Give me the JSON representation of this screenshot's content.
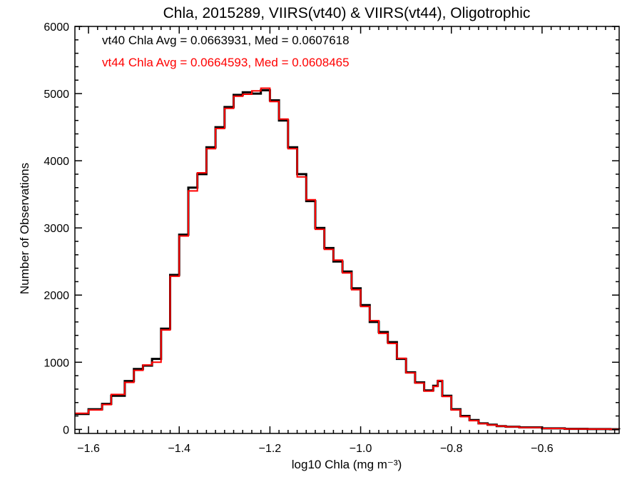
{
  "chart_data": {
    "type": "line",
    "style": "step-histogram",
    "title": "Chla, 2015289, VIIRS(vt40) & VIIRS(vt44), Oligotrophic",
    "xlabel": "log10 Chla (mg m⁻³)",
    "ylabel": "Number of Observations",
    "xlim": [
      -1.63,
      -0.43
    ],
    "ylim": [
      -60,
      6000
    ],
    "xticks": [
      -1.6,
      -1.4,
      -1.2,
      -1.0,
      -0.8,
      -0.6
    ],
    "xtick_labels": [
      "−1.6",
      "−1.4",
      "−1.2",
      "−1.0",
      "−0.8",
      "−0.6"
    ],
    "yticks": [
      0,
      1000,
      2000,
      3000,
      4000,
      5000,
      6000
    ],
    "ytick_labels": [
      "0",
      "1000",
      "2000",
      "3000",
      "4000",
      "5000",
      "6000"
    ],
    "grid": false,
    "annotations": [
      {
        "text": "vt40 Chla Avg = 0.0663931, Med = 0.0607618",
        "color": "#000000"
      },
      {
        "text": "vt44 Chla Avg = 0.0664593, Med = 0.0608465",
        "color": "#ff0000"
      }
    ],
    "series": [
      {
        "color": "#000000",
        "x": [
          -1.63,
          -1.6,
          -1.57,
          -1.55,
          -1.52,
          -1.5,
          -1.48,
          -1.46,
          -1.44,
          -1.42,
          -1.4,
          -1.38,
          -1.36,
          -1.34,
          -1.32,
          -1.3,
          -1.28,
          -1.26,
          -1.24,
          -1.22,
          -1.2,
          -1.18,
          -1.16,
          -1.14,
          -1.12,
          -1.1,
          -1.08,
          -1.06,
          -1.04,
          -1.02,
          -1.0,
          -0.98,
          -0.96,
          -0.94,
          -0.92,
          -0.9,
          -0.88,
          -0.86,
          -0.84,
          -0.83,
          -0.82,
          -0.8,
          -0.78,
          -0.76,
          -0.74,
          -0.72,
          -0.7,
          -0.68,
          -0.65,
          -0.6,
          -0.55,
          -0.5,
          -0.45,
          -0.43
        ],
        "values": [
          230,
          300,
          380,
          500,
          720,
          900,
          950,
          1050,
          1500,
          2300,
          2900,
          3600,
          3800,
          4200,
          4500,
          4800,
          4980,
          5020,
          5000,
          5050,
          4900,
          4600,
          4200,
          3800,
          3400,
          3000,
          2700,
          2500,
          2350,
          2100,
          1850,
          1600,
          1450,
          1300,
          1050,
          850,
          700,
          580,
          650,
          720,
          500,
          300,
          200,
          140,
          90,
          70,
          50,
          40,
          30,
          15,
          8,
          5,
          3,
          2
        ]
      },
      {
        "color": "#ff0000",
        "x": [
          -1.63,
          -1.6,
          -1.57,
          -1.55,
          -1.52,
          -1.5,
          -1.48,
          -1.46,
          -1.44,
          -1.42,
          -1.4,
          -1.38,
          -1.36,
          -1.34,
          -1.32,
          -1.3,
          -1.28,
          -1.26,
          -1.24,
          -1.22,
          -1.2,
          -1.18,
          -1.16,
          -1.14,
          -1.12,
          -1.1,
          -1.08,
          -1.06,
          -1.04,
          -1.02,
          -1.0,
          -0.98,
          -0.96,
          -0.94,
          -0.92,
          -0.9,
          -0.88,
          -0.86,
          -0.84,
          -0.83,
          -0.82,
          -0.8,
          -0.78,
          -0.76,
          -0.74,
          -0.72,
          -0.7,
          -0.68,
          -0.65,
          -0.6,
          -0.55,
          -0.5,
          -0.45,
          -0.43
        ],
        "values": [
          240,
          290,
          370,
          520,
          700,
          880,
          960,
          1000,
          1480,
          2280,
          2880,
          3550,
          3820,
          4180,
          4480,
          4780,
          4960,
          4990,
          5040,
          5080,
          4880,
          4620,
          4180,
          3760,
          3420,
          2980,
          2680,
          2520,
          2330,
          2080,
          1830,
          1620,
          1430,
          1280,
          1060,
          840,
          690,
          570,
          640,
          730,
          490,
          290,
          190,
          130,
          85,
          65,
          48,
          38,
          28,
          14,
          7,
          5,
          3,
          2
        ]
      }
    ]
  }
}
